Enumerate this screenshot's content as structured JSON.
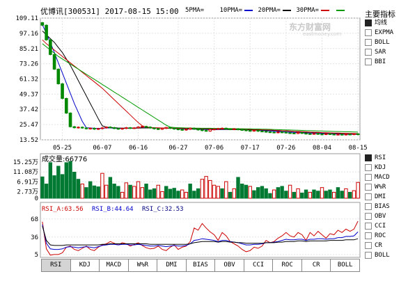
{
  "header": {
    "stock_name": "优博讯",
    "stock_code": "[300531]",
    "datetime": "2017-08-15 15:00"
  },
  "ma_legend": [
    {
      "label": "5PMA=",
      "color": "#ffffff"
    },
    {
      "label": "10PMA=",
      "color": "#0000cc"
    },
    {
      "label": "20PMA=",
      "color": "#000000"
    },
    {
      "label": "30PMA=",
      "color": "#cc0000"
    },
    {
      "label": "",
      "color": "#009900"
    }
  ],
  "watermark": {
    "main": "东方财富网",
    "sub": "eastmoney.com"
  },
  "sidebar": {
    "title": "主要指标",
    "main_indicators": [
      {
        "label": "均线",
        "active": true
      },
      {
        "label": "EXPMA",
        "active": false
      },
      {
        "label": "BOLL",
        "active": false
      },
      {
        "label": "SAR",
        "active": false
      },
      {
        "label": "BBI",
        "active": false
      }
    ],
    "sub_indicators": [
      {
        "label": "RSI",
        "active": true
      },
      {
        "label": "KDJ",
        "active": false
      },
      {
        "label": "MACD",
        "active": false
      },
      {
        "label": "W%R",
        "active": false
      },
      {
        "label": "DMI",
        "active": false
      },
      {
        "label": "BIAS",
        "active": false
      },
      {
        "label": "OBV",
        "active": false
      },
      {
        "label": "CCI",
        "active": false
      },
      {
        "label": "ROC",
        "active": false
      },
      {
        "label": "CR",
        "active": false
      },
      {
        "label": "BOLL",
        "active": false
      }
    ]
  },
  "tabs": [
    {
      "label": "RSI",
      "active": true
    },
    {
      "label": "KDJ",
      "active": false
    },
    {
      "label": "MACD",
      "active": false
    },
    {
      "label": "W%R",
      "active": false
    },
    {
      "label": "DMI",
      "active": false
    },
    {
      "label": "BIAS",
      "active": false
    },
    {
      "label": "OBV",
      "active": false
    },
    {
      "label": "CCI",
      "active": false
    },
    {
      "label": "ROC",
      "active": false
    },
    {
      "label": "CR",
      "active": false
    },
    {
      "label": "BOLL",
      "active": false
    }
  ],
  "chart_data": [
    {
      "type": "candlestick",
      "yticks": [
        "109.11",
        "97.16",
        "85.21",
        "73.26",
        "61.32",
        "49.37",
        "37.42",
        "25.47",
        "13.52"
      ],
      "ylim": [
        13.52,
        109.11
      ],
      "xticks": [
        {
          "label": "05-25",
          "index": 5
        },
        {
          "label": "06-07",
          "index": 15
        },
        {
          "label": "06-16",
          "index": 24
        },
        {
          "label": "06-27",
          "index": 34
        },
        {
          "label": "07-06",
          "index": 43
        },
        {
          "label": "07-17",
          "index": 52
        },
        {
          "label": "07-26",
          "index": 61
        },
        {
          "label": "08-04",
          "index": 70
        },
        {
          "label": "08-15",
          "index": 79
        }
      ],
      "close": [
        103.5,
        92.0,
        80.5,
        69.0,
        57.5,
        46.0,
        34.5,
        23.8,
        23.0,
        23.4,
        22.8,
        22.2,
        22.6,
        21.9,
        22.3,
        22.9,
        23.5,
        23.1,
        22.4,
        22.0,
        22.5,
        23.0,
        22.6,
        22.9,
        23.6,
        24.0,
        23.5,
        22.8,
        22.2,
        21.8,
        22.5,
        23.2,
        22.6,
        22.0,
        21.6,
        21.2,
        21.8,
        22.6,
        21.9,
        21.3,
        20.8,
        20.4,
        21.6,
        21.9,
        22.3,
        22.6,
        22.0,
        21.7,
        22.1,
        21.5,
        21.2,
        20.8,
        20.5,
        20.9,
        20.3,
        20.1,
        19.7,
        19.5,
        19.2,
        19.6,
        19.4,
        19.0,
        18.8,
        18.5,
        19.2,
        18.6,
        18.3,
        18.1,
        18.4,
        18.0,
        17.8,
        18.2,
        17.9,
        17.6,
        17.8,
        17.5,
        17.9,
        17.7,
        18.2,
        17.6
      ],
      "ma": [
        {
          "name": "MA10",
          "color": "#0000cc",
          "values": [
            104.0,
            97.0,
            90.0,
            82.0,
            74.0,
            66.0,
            58.0,
            50.0,
            42.0,
            35.0,
            28.0,
            23.0,
            22.8,
            22.6,
            22.5,
            22.6,
            22.8,
            22.8,
            22.7,
            22.6,
            22.6,
            22.6,
            22.7,
            22.8,
            22.9,
            23.0,
            23.0,
            23.0,
            22.9,
            22.8,
            22.7,
            22.7,
            22.6,
            22.5,
            22.3,
            22.1,
            22.0,
            22.0,
            21.9,
            21.8,
            21.7,
            21.6,
            21.5,
            21.5,
            21.5,
            21.6,
            21.6,
            21.6,
            21.6,
            21.5,
            21.5,
            21.4,
            21.3,
            21.2,
            21.1,
            20.9,
            20.7,
            20.5,
            20.3,
            20.1,
            19.9,
            19.7,
            19.5,
            19.3,
            19.2,
            19.0,
            18.9,
            18.8,
            18.7,
            18.6,
            18.5,
            18.4,
            18.3,
            18.2,
            18.1,
            18.0,
            17.9,
            17.9,
            17.9,
            17.8
          ]
        },
        {
          "name": "MA20",
          "color": "#000000",
          "values": [
            99.0,
            96.0,
            93.0,
            90.0,
            86.0,
            82.0,
            77.0,
            72.0,
            66.0,
            60.0,
            54.0,
            48.0,
            42.0,
            36.0,
            30.0,
            24.5,
            23.5,
            23.2,
            23.0,
            22.8,
            22.7,
            22.7,
            22.7,
            22.7,
            22.7,
            22.8,
            22.8,
            22.8,
            22.8,
            22.8,
            22.8,
            22.7,
            22.7,
            22.6,
            22.5,
            22.4,
            22.3,
            22.2,
            22.1,
            22.0,
            21.9,
            21.9,
            21.8,
            21.8,
            21.8,
            21.7,
            21.7,
            21.7,
            21.6,
            21.6,
            21.5,
            21.5,
            21.4,
            21.4,
            21.3,
            21.2,
            21.1,
            21.0,
            20.9,
            20.7,
            20.6,
            20.4,
            20.2,
            20.0,
            19.8,
            19.7,
            19.5,
            19.4,
            19.2,
            19.1,
            19.0,
            18.9,
            18.8,
            18.7,
            18.6,
            18.5,
            18.5,
            18.4,
            18.3,
            18.3
          ]
        },
        {
          "name": "MA30",
          "color": "#cc0000",
          "values": [
            92.0,
            89.0,
            86.5,
            84.0,
            81.5,
            79.0,
            76.5,
            74.0,
            71.5,
            69.0,
            66.5,
            64.0,
            61.5,
            59.0,
            56.5,
            54.0,
            51.0,
            48.0,
            45.0,
            42.0,
            39.0,
            36.0,
            33.0,
            30.0,
            27.0,
            24.5,
            23.5,
            23.2,
            23.0,
            22.9,
            22.8,
            22.8,
            22.7,
            22.7,
            22.7,
            22.6,
            22.6,
            22.6,
            22.5,
            22.5,
            22.4,
            22.4,
            22.3,
            22.3,
            22.2,
            22.2,
            22.1,
            22.1,
            22.0,
            22.0,
            21.9,
            21.8,
            21.7,
            21.6,
            21.5,
            21.4,
            21.3,
            21.2,
            21.0,
            20.9,
            20.7,
            20.6,
            20.4,
            20.2,
            20.1,
            19.9,
            19.8,
            19.6,
            19.5,
            19.4,
            19.2,
            19.1,
            19.0,
            18.9,
            18.8,
            18.7,
            18.6,
            18.6,
            18.5,
            18.4
          ]
        },
        {
          "name": "MA60",
          "color": "#009900",
          "values": [
            89.0,
            86.5,
            84.0,
            81.5,
            79.0,
            77.0,
            75.0,
            73.0,
            71.0,
            69.0,
            67.0,
            65.0,
            63.0,
            61.0,
            59.0,
            57.0,
            55.0,
            53.0,
            51.0,
            49.0,
            47.0,
            45.0,
            43.0,
            41.0,
            39.0,
            37.0,
            35.0,
            33.0,
            31.0,
            29.0,
            27.0,
            25.0,
            23.5,
            23.2,
            23.0,
            22.9,
            22.8,
            22.8,
            22.7,
            22.7,
            22.6,
            22.6,
            22.6,
            22.5,
            22.5,
            22.4,
            22.4,
            22.3,
            22.3,
            22.2,
            22.2,
            22.1,
            22.1,
            22.0,
            22.0,
            21.9,
            21.8,
            21.7,
            21.6,
            21.5,
            21.4,
            21.3,
            21.2,
            21.1,
            21.0,
            20.9,
            20.8,
            20.7,
            20.6,
            20.5,
            20.4,
            20.3,
            20.2,
            20.1,
            20.0,
            19.9,
            19.8,
            19.8,
            19.7,
            19.6
          ]
        }
      ]
    },
    {
      "type": "bar",
      "title": "成交量:66776",
      "yticks": [
        "15.25万",
        "11.08万",
        "6.91万",
        "2.73万",
        "0"
      ],
      "ylim": [
        0,
        152500
      ],
      "values": [
        90000,
        60000,
        150000,
        95000,
        135000,
        100000,
        150000,
        155000,
        110000,
        80000,
        60000,
        45000,
        70000,
        52000,
        48000,
        105000,
        55000,
        88000,
        60000,
        50000,
        25000,
        65000,
        55000,
        50000,
        70000,
        45000,
        60000,
        35000,
        40000,
        55000,
        28000,
        50000,
        38000,
        42000,
        30000,
        35000,
        25000,
        60000,
        30000,
        40000,
        80000,
        92000,
        75000,
        55000,
        50000,
        40000,
        70000,
        25000,
        40000,
        88000,
        60000,
        55000,
        50000,
        32000,
        45000,
        50000,
        40000,
        20000,
        35000,
        45000,
        50000,
        30000,
        55000,
        25000,
        40000,
        22000,
        35000,
        25000,
        35000,
        30000,
        45000,
        30000,
        35000,
        25000,
        45000,
        30000,
        40000,
        25000,
        32000,
        66776
      ],
      "up": [
        false,
        false,
        false,
        false,
        false,
        false,
        false,
        false,
        false,
        false,
        true,
        false,
        false,
        false,
        false,
        true,
        true,
        false,
        false,
        false,
        true,
        true,
        false,
        true,
        true,
        true,
        false,
        false,
        false,
        true,
        true,
        false,
        false,
        false,
        false,
        true,
        true,
        false,
        false,
        false,
        true,
        true,
        true,
        true,
        true,
        false,
        true,
        false,
        true,
        false,
        false,
        false,
        true,
        false,
        false,
        false,
        false,
        false,
        true,
        false,
        false,
        false,
        true,
        false,
        true,
        false,
        false,
        true,
        false,
        false,
        true,
        false,
        false,
        true,
        false,
        false,
        true,
        false,
        true,
        true
      ]
    },
    {
      "type": "line",
      "title": "RSI",
      "labels": {
        "a": "RSI_A:63.56",
        "b": "RSI_B:44.64",
        "c": "RSI_C:32.53"
      },
      "yticks": [
        "68",
        "36",
        "5"
      ],
      "ylim": [
        0,
        80
      ],
      "series": [
        {
          "name": "RSI_A",
          "color": "#cc0000",
          "values": [
            63,
            15,
            4,
            5,
            5,
            8,
            18,
            20,
            14,
            12,
            16,
            20,
            14,
            12,
            18,
            22,
            24,
            28,
            25,
            22,
            26,
            24,
            20,
            23,
            26,
            21,
            17,
            15,
            16,
            20,
            14,
            12,
            18,
            22,
            14,
            18,
            20,
            28,
            52,
            48,
            60,
            52,
            45,
            40,
            30,
            44,
            38,
            28,
            24,
            20,
            14,
            10,
            12,
            18,
            16,
            20,
            30,
            26,
            28,
            34,
            38,
            44,
            38,
            36,
            44,
            40,
            30,
            44,
            38,
            46,
            40,
            34,
            42,
            40,
            48,
            44,
            50,
            46,
            50,
            64
          ]
        },
        {
          "name": "RSI_B",
          "color": "#0000cc",
          "values": [
            58,
            25,
            15,
            14,
            14,
            15,
            18,
            19,
            18,
            17,
            18,
            19,
            18,
            17,
            19,
            21,
            22,
            23,
            23,
            22,
            23,
            23,
            22,
            22,
            23,
            22,
            21,
            20,
            20,
            21,
            20,
            19,
            20,
            21,
            20,
            20,
            21,
            24,
            30,
            31,
            33,
            32,
            31,
            30,
            28,
            30,
            30,
            28,
            27,
            26,
            24,
            22,
            22,
            23,
            23,
            24,
            26,
            26,
            27,
            28,
            30,
            32,
            31,
            31,
            32,
            32,
            30,
            32,
            32,
            33,
            33,
            32,
            33,
            33,
            35,
            35,
            37,
            37,
            38,
            45
          ]
        },
        {
          "name": "RSI_C",
          "color": "#000000",
          "values": [
            55,
            30,
            22,
            21,
            21,
            21,
            22,
            22,
            22,
            22,
            22,
            22,
            22,
            22,
            22,
            23,
            23,
            24,
            24,
            24,
            24,
            24,
            24,
            24,
            24,
            24,
            24,
            23,
            23,
            23,
            23,
            23,
            23,
            23,
            23,
            23,
            23,
            24,
            26,
            27,
            28,
            28,
            28,
            28,
            27,
            28,
            28,
            27,
            27,
            26,
            26,
            25,
            25,
            25,
            25,
            25,
            26,
            26,
            26,
            27,
            27,
            28,
            28,
            28,
            29,
            29,
            28,
            29,
            29,
            29,
            29,
            29,
            30,
            30,
            30,
            30,
            31,
            31,
            31,
            33
          ]
        }
      ]
    }
  ]
}
